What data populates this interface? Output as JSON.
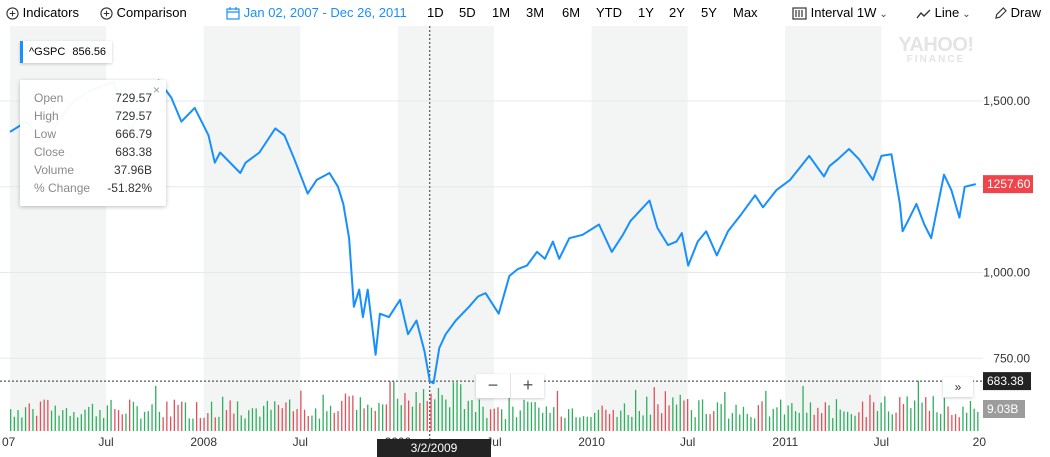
{
  "toolbar": {
    "indicators": "Indicators",
    "comparison": "Comparison",
    "date_range": "Jan 02, 2007 - Dec 26, 2011",
    "ranges": [
      "1D",
      "5D",
      "1M",
      "3M",
      "6M",
      "YTD",
      "1Y",
      "2Y",
      "5Y",
      "Max"
    ],
    "interval_label": "Interval",
    "interval_value": "1W",
    "chart_type": "Line",
    "draw": "Draw"
  },
  "watermark": {
    "brand": "YAHOO!",
    "sub": "FINANCE"
  },
  "symbol_tag": {
    "symbol": "^GSPC",
    "value": "856.56"
  },
  "tooltip": {
    "rows": [
      {
        "label": "Open",
        "value": "729.57"
      },
      {
        "label": "High",
        "value": "729.57"
      },
      {
        "label": "Low",
        "value": "666.79"
      },
      {
        "label": "Close",
        "value": "683.38"
      },
      {
        "label": "Volume",
        "value": "37.96B"
      },
      {
        "label": "% Change",
        "value": "-51.82%"
      }
    ],
    "close_glyph": "×"
  },
  "crosshair": {
    "date_label": "3/2/2009",
    "price_label": "683.38"
  },
  "zoom": {
    "minus": "−",
    "plus": "+"
  },
  "expand_glyph": "»",
  "colors": {
    "line": "#188fff",
    "up": "#2faf5f",
    "down": "#e0525a",
    "last_badge": "#f0444b",
    "band": "#f3f5f4",
    "grid": "#e8e8e8",
    "volume_badge": "#9c9c9c"
  },
  "chart_data": {
    "type": "line",
    "symbol": "^GSPC",
    "x_start": "2007-01-02",
    "x_end": "2011-12-26",
    "xaxis_ticks": [
      "07",
      "Jul",
      "2008",
      "Jul",
      "2009",
      "Jul",
      "2010",
      "Jul",
      "2011",
      "Jul",
      "20"
    ],
    "yaxis_ticks": [
      "1,500.00",
      "1,000.00",
      "750.00"
    ],
    "ylim": [
      650,
      1700
    ],
    "last_value": "1257.60",
    "volume_max_label": "9.03B",
    "series": [
      {
        "points": [
          [
            "2007-01-01",
            1410
          ],
          [
            "2007-02-01",
            1440
          ],
          [
            "2007-02-26",
            1390
          ],
          [
            "2007-03-12",
            1380
          ],
          [
            "2007-04-01",
            1440
          ],
          [
            "2007-05-01",
            1500
          ],
          [
            "2007-06-01",
            1530
          ],
          [
            "2007-07-15",
            1555
          ],
          [
            "2007-08-05",
            1470
          ],
          [
            "2007-08-16",
            1410
          ],
          [
            "2007-09-01",
            1475
          ],
          [
            "2007-10-08",
            1560
          ],
          [
            "2007-11-01",
            1510
          ],
          [
            "2007-11-20",
            1440
          ],
          [
            "2007-12-15",
            1480
          ],
          [
            "2008-01-10",
            1400
          ],
          [
            "2008-01-22",
            1320
          ],
          [
            "2008-02-01",
            1350
          ],
          [
            "2008-03-10",
            1290
          ],
          [
            "2008-03-20",
            1320
          ],
          [
            "2008-04-15",
            1350
          ],
          [
            "2008-05-15",
            1420
          ],
          [
            "2008-06-01",
            1400
          ],
          [
            "2008-06-20",
            1330
          ],
          [
            "2008-07-15",
            1230
          ],
          [
            "2008-08-01",
            1270
          ],
          [
            "2008-08-25",
            1290
          ],
          [
            "2008-09-10",
            1250
          ],
          [
            "2008-09-20",
            1200
          ],
          [
            "2008-10-01",
            1100
          ],
          [
            "2008-10-10",
            900
          ],
          [
            "2008-10-20",
            950
          ],
          [
            "2008-10-27",
            870
          ],
          [
            "2008-11-05",
            950
          ],
          [
            "2008-11-20",
            760
          ],
          [
            "2008-11-28",
            880
          ],
          [
            "2008-12-15",
            870
          ],
          [
            "2009-01-05",
            920
          ],
          [
            "2009-01-20",
            820
          ],
          [
            "2009-02-05",
            860
          ],
          [
            "2009-02-20",
            770
          ],
          [
            "2009-03-02",
            683.38
          ],
          [
            "2009-03-09",
            677
          ],
          [
            "2009-03-20",
            780
          ],
          [
            "2009-04-01",
            820
          ],
          [
            "2009-04-20",
            860
          ],
          [
            "2009-05-15",
            900
          ],
          [
            "2009-06-01",
            930
          ],
          [
            "2009-06-15",
            940
          ],
          [
            "2009-07-10",
            880
          ],
          [
            "2009-07-30",
            990
          ],
          [
            "2009-08-15",
            1010
          ],
          [
            "2009-09-01",
            1020
          ],
          [
            "2009-09-20",
            1060
          ],
          [
            "2009-10-05",
            1040
          ],
          [
            "2009-10-20",
            1090
          ],
          [
            "2009-11-01",
            1040
          ],
          [
            "2009-11-20",
            1100
          ],
          [
            "2009-12-15",
            1110
          ],
          [
            "2010-01-15",
            1140
          ],
          [
            "2010-02-08",
            1060
          ],
          [
            "2010-03-01",
            1110
          ],
          [
            "2010-03-15",
            1150
          ],
          [
            "2010-04-20",
            1210
          ],
          [
            "2010-05-05",
            1130
          ],
          [
            "2010-05-25",
            1080
          ],
          [
            "2010-06-10",
            1090
          ],
          [
            "2010-06-20",
            1115
          ],
          [
            "2010-07-02",
            1020
          ],
          [
            "2010-07-20",
            1090
          ],
          [
            "2010-08-05",
            1120
          ],
          [
            "2010-08-25",
            1050
          ],
          [
            "2010-09-15",
            1120
          ],
          [
            "2010-10-10",
            1170
          ],
          [
            "2010-11-05",
            1225
          ],
          [
            "2010-11-20",
            1190
          ],
          [
            "2010-12-15",
            1240
          ],
          [
            "2011-01-10",
            1270
          ],
          [
            "2011-02-15",
            1340
          ],
          [
            "2011-03-15",
            1280
          ],
          [
            "2011-03-25",
            1310
          ],
          [
            "2011-04-10",
            1330
          ],
          [
            "2011-05-01",
            1360
          ],
          [
            "2011-05-20",
            1330
          ],
          [
            "2011-06-15",
            1270
          ],
          [
            "2011-07-01",
            1340
          ],
          [
            "2011-07-20",
            1345
          ],
          [
            "2011-08-05",
            1200
          ],
          [
            "2011-08-10",
            1120
          ],
          [
            "2011-08-20",
            1150
          ],
          [
            "2011-09-05",
            1200
          ],
          [
            "2011-09-20",
            1140
          ],
          [
            "2011-10-03",
            1100
          ],
          [
            "2011-10-27",
            1285
          ],
          [
            "2011-11-10",
            1240
          ],
          [
            "2011-11-25",
            1160
          ],
          [
            "2011-12-05",
            1250
          ],
          [
            "2011-12-26",
            1257.6
          ]
        ]
      }
    ]
  }
}
